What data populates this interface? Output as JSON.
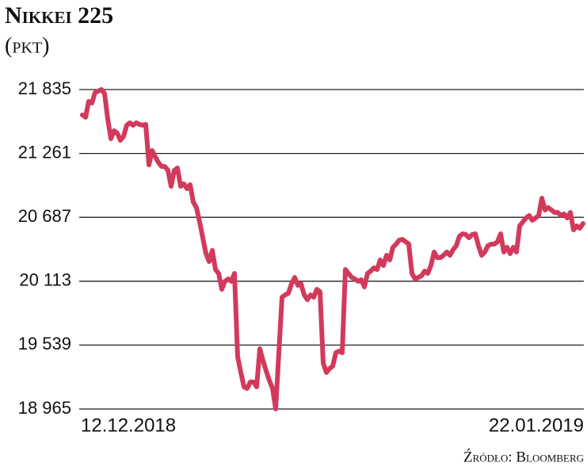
{
  "chart_data": {
    "type": "line",
    "title": "Nikkei 225",
    "subtitle": "(pkt)",
    "source": "Źródło: Bloomberg",
    "categories": [
      "12.12.2018",
      null,
      null,
      null,
      null,
      null,
      null,
      null,
      null,
      null,
      null,
      null,
      null,
      null,
      null,
      null,
      null,
      null,
      null,
      null,
      null,
      null,
      null,
      null,
      null,
      null,
      null,
      null,
      null,
      null,
      null,
      null,
      null,
      null,
      null,
      null,
      null,
      null,
      null,
      null,
      null,
      null,
      null,
      null,
      null,
      null,
      null,
      null,
      null,
      null,
      null,
      null,
      null,
      null,
      null,
      null,
      null,
      null,
      null,
      null,
      null,
      null,
      null,
      null,
      null,
      null,
      null,
      null,
      null,
      null,
      null,
      null,
      null,
      null,
      null,
      null,
      null,
      null,
      null,
      null,
      null,
      null,
      null,
      null,
      null,
      null,
      null,
      null,
      null,
      null,
      null,
      null,
      null,
      null,
      null,
      null,
      null,
      null,
      null,
      null,
      null,
      null,
      null,
      null,
      null,
      null,
      null,
      null,
      null,
      null,
      null,
      null,
      null,
      null,
      null,
      null,
      null,
      null,
      null,
      null,
      null,
      null,
      null,
      null,
      null,
      null,
      null,
      null,
      null,
      null,
      null,
      null,
      null,
      null,
      null,
      null,
      null,
      null,
      null,
      null,
      null,
      null,
      null,
      null,
      null,
      null,
      null,
      null,
      null,
      null,
      null,
      null,
      null,
      null,
      null,
      null,
      null,
      null,
      "22.01.2019"
    ],
    "values": [
      21607,
      21586,
      21728,
      21714,
      21807,
      21821,
      21835,
      21799,
      21571,
      21393,
      21465,
      21443,
      21379,
      21415,
      21515,
      21536,
      21515,
      21536,
      21522,
      21515,
      21522,
      21158,
      21287,
      21230,
      21180,
      21144,
      21144,
      21109,
      20966,
      21109,
      21130,
      20966,
      20988,
      20945,
      20980,
      20824,
      20774,
      20646,
      20503,
      20361,
      20290,
      20389,
      20218,
      20183,
      20040,
      20112,
      20133,
      20112,
      20183,
      19435,
      19293,
      19164,
      19150,
      19207,
      19207,
      19164,
      19506,
      19399,
      19307,
      19221,
      19150,
      18965,
      19470,
      19969,
      19990,
      20004,
      20090,
      20147,
      20076,
      20090,
      19990,
      19947,
      19990,
      19969,
      20040,
      20019,
      19378,
      19293,
      19328,
      19350,
      19470,
      19485,
      19470,
      20218,
      20183,
      20147,
      20133,
      20112,
      20126,
      20062,
      20183,
      20204,
      20233,
      20218,
      20304,
      20254,
      20346,
      20304,
      20418,
      20446,
      20482,
      20489,
      20468,
      20446,
      20183,
      20133,
      20147,
      20161,
      20204,
      20183,
      20254,
      20375,
      20325,
      20325,
      20346,
      20375,
      20346,
      20396,
      20432,
      20517,
      20539,
      20532,
      20503,
      20532,
      20539,
      20432,
      20346,
      20375,
      20432,
      20446,
      20446,
      20468,
      20539,
      20375,
      20418,
      20361,
      20418,
      20375,
      20610,
      20646,
      20681,
      20703,
      20660,
      20681,
      20703,
      20859,
      20753,
      20774,
      20753,
      20731,
      20731,
      20703,
      20717,
      20681,
      20731,
      20574,
      20610,
      20589,
      20631
    ],
    "color": "#d23a5c",
    "ylim": [
      18965,
      21835
    ],
    "yticks": [
      {
        "value": 18965,
        "label": "18 965"
      },
      {
        "value": 19539,
        "label": "19 539"
      },
      {
        "value": 20113,
        "label": "20 113"
      },
      {
        "value": 20687,
        "label": "20 687"
      },
      {
        "value": 21261,
        "label": "21 261"
      },
      {
        "value": 21835,
        "label": "21 835"
      }
    ],
    "grid": true
  }
}
